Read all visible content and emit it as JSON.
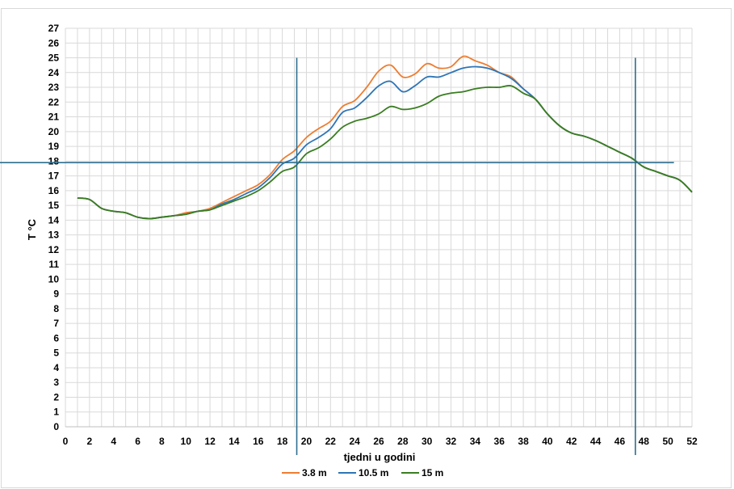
{
  "chart_data": {
    "type": "line",
    "title": "",
    "xlabel": "tjedni u godini",
    "ylabel": "T °C",
    "xlim": [
      0,
      52
    ],
    "ylim": [
      0,
      27
    ],
    "x_ticks": [
      0,
      2,
      4,
      6,
      8,
      10,
      12,
      14,
      16,
      18,
      20,
      22,
      24,
      26,
      28,
      30,
      32,
      34,
      36,
      38,
      40,
      42,
      44,
      46,
      48,
      50,
      52
    ],
    "y_ticks": [
      0,
      1,
      2,
      3,
      4,
      5,
      6,
      7,
      8,
      9,
      10,
      11,
      12,
      13,
      14,
      15,
      16,
      17,
      18,
      19,
      20,
      21,
      22,
      23,
      24,
      25,
      26,
      27
    ],
    "grid": true,
    "legend_position": "bottom",
    "series": [
      {
        "name": "3.8 m",
        "color": "#ed7d31",
        "x": [
          1,
          2,
          3,
          4,
          5,
          6,
          7,
          8,
          9,
          10,
          11,
          12,
          13,
          14,
          15,
          16,
          17,
          18,
          19,
          20,
          21,
          22,
          23,
          24,
          25,
          26,
          27,
          28,
          29,
          30,
          31,
          32,
          33,
          34,
          35,
          36,
          37,
          38,
          39,
          40,
          41,
          42,
          43,
          44,
          45,
          46,
          47,
          48,
          49,
          50,
          51,
          52
        ],
        "y": [
          15.5,
          15.4,
          14.8,
          14.6,
          14.5,
          14.2,
          14.1,
          14.2,
          14.3,
          14.5,
          14.6,
          14.8,
          15.2,
          15.6,
          16.0,
          16.4,
          17.1,
          18.1,
          18.7,
          19.6,
          20.2,
          20.7,
          21.7,
          22.1,
          23.0,
          24.1,
          24.5,
          23.7,
          23.9,
          24.6,
          24.3,
          24.4,
          25.1,
          24.8,
          24.5,
          24.0,
          23.7,
          22.9,
          22.2,
          21.2,
          20.4,
          19.9,
          19.7,
          19.4,
          19.0,
          18.6,
          18.2,
          17.6,
          17.3,
          17.0,
          16.7,
          15.9
        ]
      },
      {
        "name": "10.5 m",
        "color": "#2e75b6",
        "x": [
          1,
          2,
          3,
          4,
          5,
          6,
          7,
          8,
          9,
          10,
          11,
          12,
          13,
          14,
          15,
          16,
          17,
          18,
          19,
          20,
          21,
          22,
          23,
          24,
          25,
          26,
          27,
          28,
          29,
          30,
          31,
          32,
          33,
          34,
          35,
          36,
          37,
          38,
          39,
          40,
          41,
          42,
          43,
          44,
          45,
          46,
          47,
          48,
          49,
          50,
          51,
          52
        ],
        "y": [
          15.5,
          15.4,
          14.8,
          14.6,
          14.5,
          14.2,
          14.1,
          14.2,
          14.3,
          14.4,
          14.6,
          14.7,
          15.1,
          15.4,
          15.8,
          16.2,
          16.9,
          17.8,
          18.2,
          19.1,
          19.6,
          20.2,
          21.3,
          21.6,
          22.3,
          23.1,
          23.4,
          22.7,
          23.1,
          23.7,
          23.7,
          24.0,
          24.3,
          24.4,
          24.3,
          24.0,
          23.6,
          22.9,
          22.2,
          21.2,
          20.4,
          19.9,
          19.7,
          19.4,
          19.0,
          18.6,
          18.2,
          17.6,
          17.3,
          17.0,
          16.7,
          15.9
        ]
      },
      {
        "name": "15 m",
        "color": "#3a7d22",
        "x": [
          1,
          2,
          3,
          4,
          5,
          6,
          7,
          8,
          9,
          10,
          11,
          12,
          13,
          14,
          15,
          16,
          17,
          18,
          19,
          20,
          21,
          22,
          23,
          24,
          25,
          26,
          27,
          28,
          29,
          30,
          31,
          32,
          33,
          34,
          35,
          36,
          37,
          38,
          39,
          40,
          41,
          42,
          43,
          44,
          45,
          46,
          47,
          48,
          49,
          50,
          51,
          52
        ],
        "y": [
          15.5,
          15.4,
          14.8,
          14.6,
          14.5,
          14.2,
          14.1,
          14.2,
          14.3,
          14.4,
          14.6,
          14.7,
          15.0,
          15.3,
          15.6,
          16.0,
          16.6,
          17.3,
          17.6,
          18.5,
          18.9,
          19.5,
          20.3,
          20.7,
          20.9,
          21.2,
          21.7,
          21.5,
          21.6,
          21.9,
          22.4,
          22.6,
          22.7,
          22.9,
          23.0,
          23.0,
          23.1,
          22.6,
          22.2,
          21.2,
          20.4,
          19.9,
          19.7,
          19.4,
          19.0,
          18.6,
          18.2,
          17.6,
          17.3,
          17.0,
          16.7,
          15.9
        ]
      }
    ],
    "reference_lines": {
      "color": "#2e6e8e",
      "horizontal_y": 17.9,
      "vertical_x": [
        19.2,
        47.3
      ]
    }
  }
}
